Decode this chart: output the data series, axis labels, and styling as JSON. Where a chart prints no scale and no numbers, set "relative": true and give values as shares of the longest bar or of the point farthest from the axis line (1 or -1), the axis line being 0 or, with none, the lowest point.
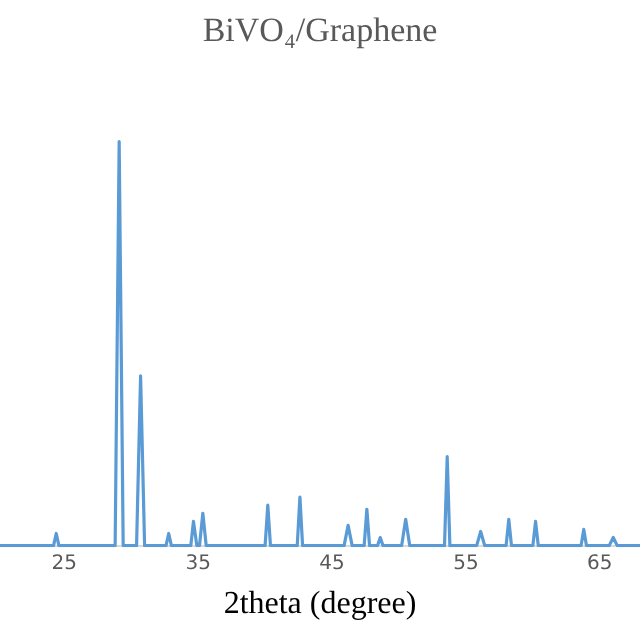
{
  "chart_data": {
    "type": "line",
    "title": "BiVO₄/Graphene",
    "xlabel": "2theta (degree)",
    "relative": true,
    "color": "#5b9bd5",
    "marker": "none",
    "grid": false,
    "xlim": [
      20.2,
      68
    ],
    "xticks": [
      25,
      35,
      45,
      55,
      65
    ],
    "x": [
      20.2,
      24.2,
      24.4,
      24.6,
      28.8,
      29.1,
      29.4,
      30.4,
      30.7,
      31.0,
      32.6,
      32.8,
      33.0,
      34.45,
      34.65,
      34.9,
      35.1,
      35.35,
      35.6,
      40.0,
      40.2,
      40.4,
      42.4,
      42.6,
      42.8,
      45.9,
      46.2,
      46.5,
      47.4,
      47.6,
      47.8,
      48.4,
      48.6,
      48.8,
      50.2,
      50.5,
      50.8,
      53.4,
      53.6,
      53.8,
      55.8,
      56.1,
      56.4,
      58.0,
      58.2,
      58.4,
      60.0,
      60.2,
      60.4,
      63.6,
      63.8,
      64.0,
      65.7,
      66.0,
      66.3,
      68
    ],
    "values": [
      0,
      0,
      0.03,
      0,
      0,
      1,
      0,
      0,
      0.42,
      0,
      0,
      0.03,
      0,
      0,
      0.06,
      0,
      0,
      0.08,
      0,
      0,
      0.1,
      0,
      0,
      0.12,
      0,
      0,
      0.05,
      0,
      0,
      0.09,
      0,
      0,
      0.02,
      0,
      0,
      0.065,
      0,
      0,
      0.22,
      0,
      0,
      0.035,
      0,
      0,
      0.065,
      0,
      0,
      0.06,
      0,
      0,
      0.04,
      0,
      0,
      0.02,
      0,
      0
    ]
  }
}
